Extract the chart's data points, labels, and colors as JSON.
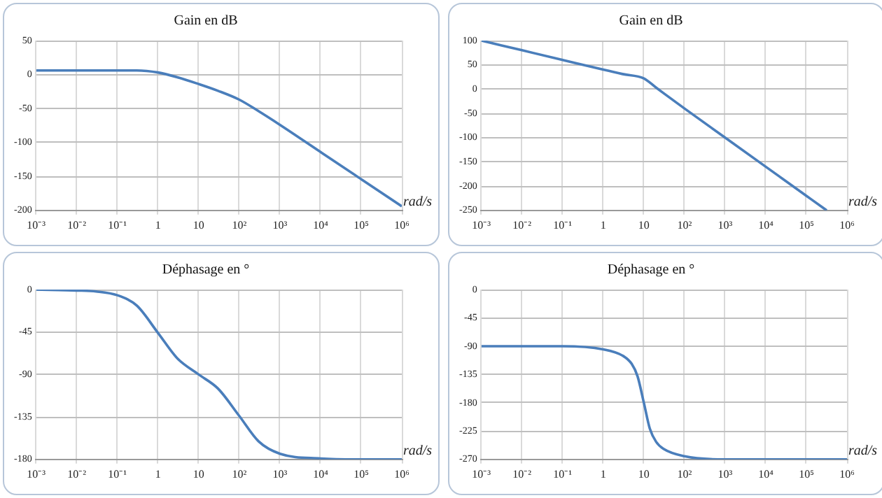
{
  "chart_data": [
    {
      "type": "line",
      "title": "Gain en dB",
      "xlabel": "rad/s",
      "log": "x",
      "grid": true,
      "legend": false,
      "marker": "none",
      "xlim": [
        0.001,
        1000000
      ],
      "ylim": [
        -200,
        50
      ],
      "xticks": [
        {
          "value": 0.001,
          "label": "10⁻³"
        },
        {
          "value": 0.01,
          "label": "10⁻²"
        },
        {
          "value": 0.1,
          "label": "10⁻¹"
        },
        {
          "value": 1,
          "label": "1"
        },
        {
          "value": 10,
          "label": "10"
        },
        {
          "value": 100,
          "label": "10²"
        },
        {
          "value": 1000,
          "label": "10³"
        },
        {
          "value": 10000,
          "label": "10⁴"
        },
        {
          "value": 100000,
          "label": "10⁵"
        },
        {
          "value": 1000000,
          "label": "10⁶"
        }
      ],
      "yticks": [
        -200,
        -150,
        -100,
        -50,
        0,
        50
      ],
      "x": [
        0.001,
        0.01,
        0.1,
        0.3,
        1,
        3,
        10,
        30,
        100,
        300,
        1000,
        10000,
        100000,
        1000000
      ],
      "series": [
        {
          "color": "#4a7ebb",
          "values": [
            6,
            6,
            6,
            6,
            3,
            -4,
            -14,
            -24,
            -37,
            -54,
            -74,
            -114,
            -154,
            -194
          ]
        }
      ]
    },
    {
      "type": "line",
      "title": "Gain en dB",
      "xlabel": "rad/s",
      "log": "x",
      "grid": true,
      "legend": false,
      "marker": "none",
      "xlim": [
        0.001,
        1000000
      ],
      "ylim": [
        -250,
        100
      ],
      "xticks": [
        {
          "value": 0.001,
          "label": "10⁻³"
        },
        {
          "value": 0.01,
          "label": "10⁻²"
        },
        {
          "value": 0.1,
          "label": "10⁻¹"
        },
        {
          "value": 1,
          "label": "1"
        },
        {
          "value": 10,
          "label": "10"
        },
        {
          "value": 100,
          "label": "10²"
        },
        {
          "value": 1000,
          "label": "10³"
        },
        {
          "value": 10000,
          "label": "10⁴"
        },
        {
          "value": 100000,
          "label": "10⁵"
        },
        {
          "value": 1000000,
          "label": "10⁶"
        }
      ],
      "yticks": [
        -250,
        -200,
        -150,
        -100,
        -50,
        0,
        50,
        100
      ],
      "x": [
        0.001,
        0.01,
        0.1,
        1,
        3,
        10,
        20,
        30,
        100,
        1000,
        10000,
        100000,
        316000
      ],
      "series": [
        {
          "color": "#4a7ebb",
          "values": [
            100,
            80,
            60,
            40,
            31,
            22,
            3,
            -8,
            -40,
            -100,
            -160,
            -220,
            -250
          ]
        }
      ]
    },
    {
      "type": "line",
      "title": "Déphasage en °",
      "xlabel": "rad/s",
      "log": "x",
      "grid": true,
      "legend": false,
      "marker": "none",
      "xlim": [
        0.001,
        1000000
      ],
      "ylim": [
        -180,
        0
      ],
      "xticks": [
        {
          "value": 0.001,
          "label": "10⁻³"
        },
        {
          "value": 0.01,
          "label": "10⁻²"
        },
        {
          "value": 0.1,
          "label": "10⁻¹"
        },
        {
          "value": 1,
          "label": "1"
        },
        {
          "value": 10,
          "label": "10"
        },
        {
          "value": 100,
          "label": "10²"
        },
        {
          "value": 1000,
          "label": "10³"
        },
        {
          "value": 10000,
          "label": "10⁴"
        },
        {
          "value": 100000,
          "label": "10⁵"
        },
        {
          "value": 1000000,
          "label": "10⁶"
        }
      ],
      "yticks": [
        -180,
        -135,
        -90,
        -45,
        0
      ],
      "x": [
        0.001,
        0.01,
        0.03,
        0.1,
        0.3,
        1,
        3,
        10,
        30,
        100,
        300,
        1000,
        10000,
        100000,
        1000000
      ],
      "series": [
        {
          "color": "#4a7ebb",
          "values": [
            0,
            -1,
            -2,
            -6,
            -17,
            -46,
            -73,
            -90,
            -105,
            -134,
            -161,
            -174,
            -179,
            -180,
            -180
          ]
        }
      ]
    },
    {
      "type": "line",
      "title": "Déphasage en °",
      "xlabel": "rad/s",
      "log": "x",
      "grid": true,
      "legend": false,
      "marker": "none",
      "xlim": [
        0.001,
        1000000
      ],
      "ylim": [
        -270,
        0
      ],
      "xticks": [
        {
          "value": 0.001,
          "label": "10⁻³"
        },
        {
          "value": 0.01,
          "label": "10⁻²"
        },
        {
          "value": 0.1,
          "label": "10⁻¹"
        },
        {
          "value": 1,
          "label": "1"
        },
        {
          "value": 10,
          "label": "10"
        },
        {
          "value": 100,
          "label": "10²"
        },
        {
          "value": 1000,
          "label": "10³"
        },
        {
          "value": 10000,
          "label": "10⁴"
        },
        {
          "value": 100000,
          "label": "10⁵"
        },
        {
          "value": 1000000,
          "label": "10⁶"
        }
      ],
      "yticks": [
        -270,
        -225,
        -180,
        -135,
        -90,
        -45,
        0
      ],
      "x": [
        0.001,
        0.1,
        1,
        3,
        5,
        7,
        10,
        14,
        20,
        30,
        100,
        1000,
        10000,
        1000000
      ],
      "series": [
        {
          "color": "#4a7ebb",
          "values": [
            -90,
            -90,
            -95,
            -105,
            -118,
            -138,
            -180,
            -221,
            -242,
            -253,
            -265,
            -270,
            -270,
            -270
          ]
        }
      ]
    }
  ]
}
